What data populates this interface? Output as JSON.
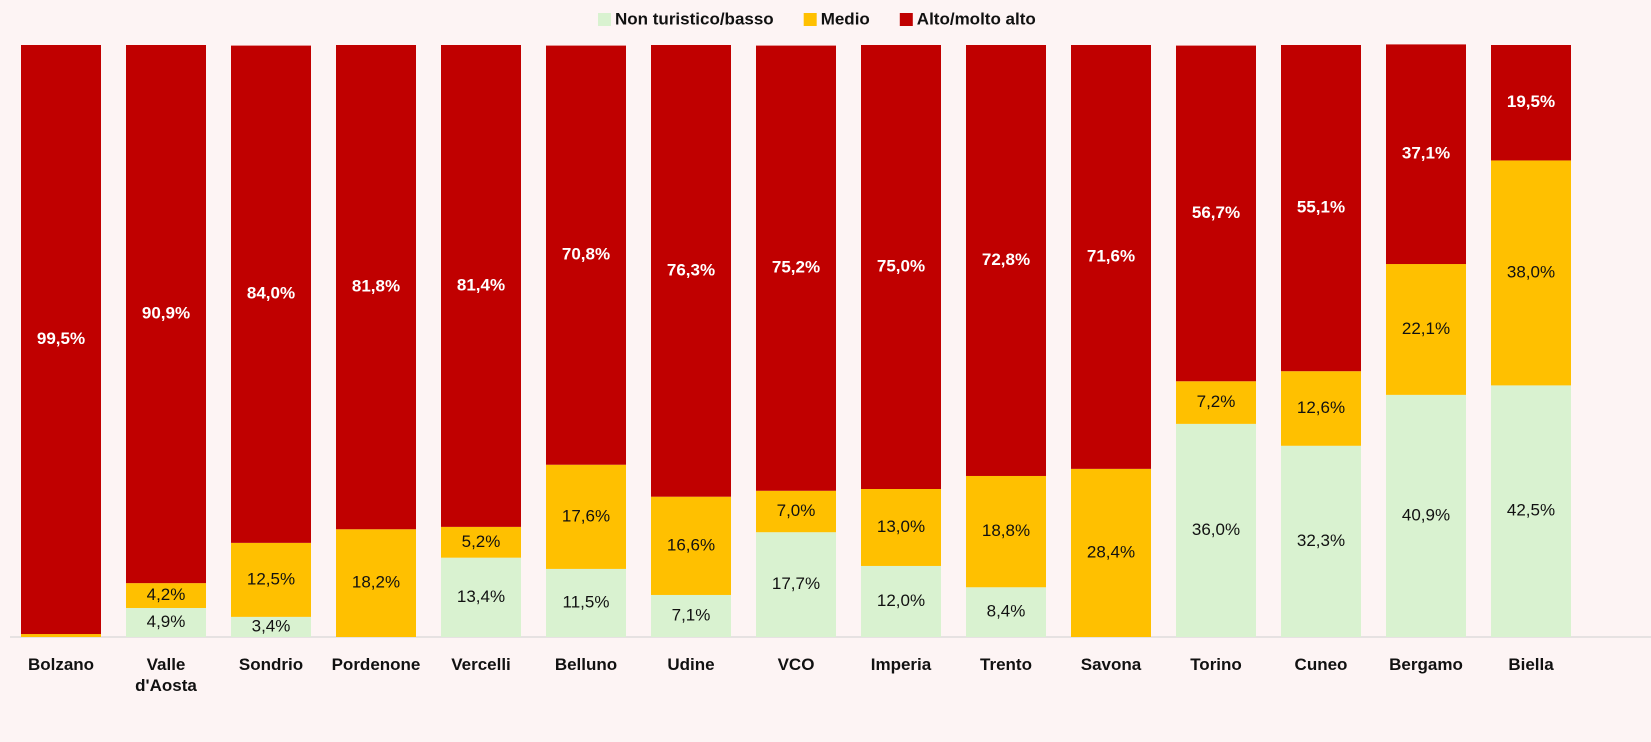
{
  "chart_data": {
    "type": "stacked_bar",
    "categories": [
      "Bolzano",
      "Valle d'Aosta",
      "Sondrio",
      "Pordenone",
      "Vercelli",
      "Belluno",
      "Udine",
      "VCO",
      "Imperia",
      "Trento",
      "Savona",
      "Torino",
      "Cuneo",
      "Bergamo",
      "Biella"
    ],
    "series": [
      {
        "name": "Non turistico/basso",
        "color": "#d9f2d0",
        "values": [
          0,
          4.9,
          3.4,
          0,
          13.4,
          11.5,
          7.1,
          17.7,
          12.0,
          8.4,
          0,
          36.0,
          32.3,
          40.9,
          42.5
        ],
        "value_labels": [
          null,
          "4,9%",
          "3,4%",
          null,
          "13,4%",
          "11,5%",
          "7,1%",
          "17,7%",
          "12,0%",
          "8,4%",
          null,
          "36,0%",
          "32,3%",
          "40,9%",
          "42,5%"
        ]
      },
      {
        "name": "Medio",
        "color": "#ffc000",
        "values": [
          0.5,
          4.2,
          12.5,
          18.2,
          5.2,
          17.6,
          16.6,
          7.0,
          13.0,
          18.8,
          28.4,
          7.2,
          12.6,
          22.1,
          38.0
        ],
        "value_labels": [
          null,
          "4,2%",
          "12,5%",
          "18,2%",
          "5,2%",
          "17,6%",
          "16,6%",
          "7,0%",
          "13,0%",
          "18,8%",
          "28,4%",
          "7,2%",
          "12,6%",
          "22,1%",
          "38,0%"
        ]
      },
      {
        "name": "Alto/molto alto",
        "color": "#c00000",
        "values": [
          99.5,
          90.9,
          84.0,
          81.8,
          81.4,
          70.8,
          76.3,
          75.2,
          75.0,
          72.8,
          71.6,
          56.7,
          55.1,
          37.1,
          19.5
        ],
        "value_labels": [
          "99,5%",
          "90,9%",
          "84,0%",
          "81,8%",
          "81,4%",
          "70,8%",
          "76,3%",
          "75,2%",
          "75,0%",
          "72,8%",
          "71,6%",
          "56,7%",
          "55,1%",
          "37,1%",
          "19,5%"
        ]
      }
    ],
    "ylim": [
      0,
      100
    ],
    "legend": "top"
  }
}
